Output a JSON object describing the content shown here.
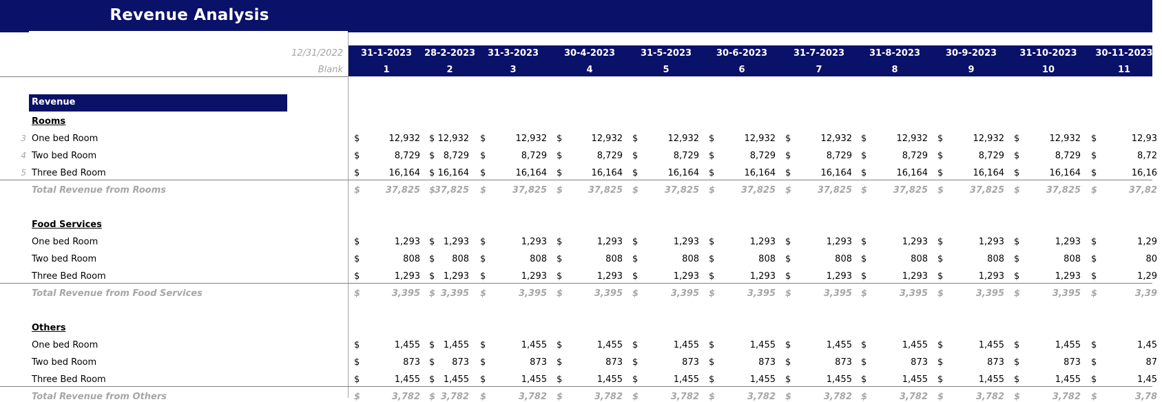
{
  "title": "Revenue Analysis",
  "base": {
    "date": "12/31/2022",
    "label": "Blank"
  },
  "columns": [
    {
      "date": "31-1-2023",
      "num": "1"
    },
    {
      "date": "28-2-2023",
      "num": "2"
    },
    {
      "date": "31-3-2023",
      "num": "3"
    },
    {
      "date": "30-4-2023",
      "num": "4"
    },
    {
      "date": "31-5-2023",
      "num": "5"
    },
    {
      "date": "30-6-2023",
      "num": "6"
    },
    {
      "date": "31-7-2023",
      "num": "7"
    },
    {
      "date": "31-8-2023",
      "num": "8"
    },
    {
      "date": "30-9-2023",
      "num": "9"
    },
    {
      "date": "31-10-2023",
      "num": "10"
    },
    {
      "date": "30-11-2023",
      "num": "11"
    }
  ],
  "currency_symbol": "$",
  "revenue_label": "Revenue",
  "sections": [
    {
      "name": "Rooms",
      "rows": [
        {
          "num": "3",
          "label": "One bed Room",
          "values": [
            "12,932",
            "12,932",
            "12,932",
            "12,932",
            "12,932",
            "12,932",
            "12,932",
            "12,932",
            "12,932",
            "12,932",
            "12,93"
          ]
        },
        {
          "num": "4",
          "label": "Two bed Room",
          "values": [
            "8,729",
            "8,729",
            "8,729",
            "8,729",
            "8,729",
            "8,729",
            "8,729",
            "8,729",
            "8,729",
            "8,729",
            "8,72"
          ]
        },
        {
          "num": "5",
          "label": "Three Bed Room",
          "values": [
            "16,164",
            "16,164",
            "16,164",
            "16,164",
            "16,164",
            "16,164",
            "16,164",
            "16,164",
            "16,164",
            "16,164",
            "16,16"
          ]
        }
      ],
      "total": {
        "label": "Total Revenue from Rooms",
        "values": [
          "37,825",
          "37,825",
          "37,825",
          "37,825",
          "37,825",
          "37,825",
          "37,825",
          "37,825",
          "37,825",
          "37,825",
          "37,82"
        ]
      }
    },
    {
      "name": "Food Services",
      "rows": [
        {
          "num": "",
          "label": "One bed Room",
          "values": [
            "1,293",
            "1,293",
            "1,293",
            "1,293",
            "1,293",
            "1,293",
            "1,293",
            "1,293",
            "1,293",
            "1,293",
            "1,29"
          ]
        },
        {
          "num": "",
          "label": "Two bed Room",
          "values": [
            "808",
            "808",
            "808",
            "808",
            "808",
            "808",
            "808",
            "808",
            "808",
            "808",
            "80"
          ]
        },
        {
          "num": "",
          "label": "Three Bed Room",
          "values": [
            "1,293",
            "1,293",
            "1,293",
            "1,293",
            "1,293",
            "1,293",
            "1,293",
            "1,293",
            "1,293",
            "1,293",
            "1,29"
          ]
        }
      ],
      "total": {
        "label": "Total Revenue from Food Services",
        "values": [
          "3,395",
          "3,395",
          "3,395",
          "3,395",
          "3,395",
          "3,395",
          "3,395",
          "3,395",
          "3,395",
          "3,395",
          "3,39"
        ]
      }
    },
    {
      "name": "Others",
      "rows": [
        {
          "num": "",
          "label": "One bed Room",
          "values": [
            "1,455",
            "1,455",
            "1,455",
            "1,455",
            "1,455",
            "1,455",
            "1,455",
            "1,455",
            "1,455",
            "1,455",
            "1,45"
          ]
        },
        {
          "num": "",
          "label": "Two bed Room",
          "values": [
            "873",
            "873",
            "873",
            "873",
            "873",
            "873",
            "873",
            "873",
            "873",
            "873",
            "87"
          ]
        },
        {
          "num": "",
          "label": "Three Bed Room",
          "values": [
            "1,455",
            "1,455",
            "1,455",
            "1,455",
            "1,455",
            "1,455",
            "1,455",
            "1,455",
            "1,455",
            "1,455",
            "1,45"
          ]
        }
      ],
      "total": {
        "label": "Total Revenue from Others",
        "values": [
          "3,782",
          "3,782",
          "3,782",
          "3,782",
          "3,782",
          "3,782",
          "3,782",
          "3,782",
          "3,782",
          "3,782",
          "3,78"
        ]
      }
    }
  ]
}
